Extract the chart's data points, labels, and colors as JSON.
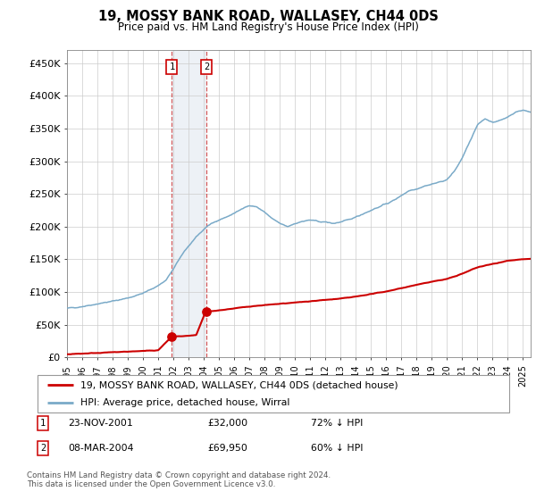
{
  "title": "19, MOSSY BANK ROAD, WALLASEY, CH44 0DS",
  "subtitle": "Price paid vs. HM Land Registry's House Price Index (HPI)",
  "xlim_start": 1995.0,
  "xlim_end": 2025.5,
  "ylim": [
    0,
    470000
  ],
  "yticks": [
    0,
    50000,
    100000,
    150000,
    200000,
    250000,
    300000,
    350000,
    400000,
    450000
  ],
  "ytick_labels": [
    "£0",
    "£50K",
    "£100K",
    "£150K",
    "£200K",
    "£250K",
    "£300K",
    "£350K",
    "£400K",
    "£450K"
  ],
  "property_color": "#cc0000",
  "hpi_color": "#7aaac8",
  "vline_color": "#cc3333",
  "annotation_fill_color": "#ccd9e8",
  "transaction1_date": 2001.9,
  "transaction1_price": 32000,
  "transaction2_date": 2004.18,
  "transaction2_price": 69950,
  "legend_property_label": "19, MOSSY BANK ROAD, WALLASEY, CH44 0DS (detached house)",
  "legend_hpi_label": "HPI: Average price, detached house, Wirral",
  "footnote": "Contains HM Land Registry data © Crown copyright and database right 2024.\nThis data is licensed under the Open Government Licence v3.0.",
  "table_rows": [
    {
      "num": "1",
      "date": "23-NOV-2001",
      "price": "£32,000",
      "hpi": "72% ↓ HPI"
    },
    {
      "num": "2",
      "date": "08-MAR-2004",
      "price": "£69,950",
      "hpi": "60% ↓ HPI"
    }
  ],
  "hpi_keypoints": [
    [
      1995.0,
      75000
    ],
    [
      1996.0,
      78000
    ],
    [
      1997.0,
      82000
    ],
    [
      1998.0,
      86000
    ],
    [
      1999.0,
      91000
    ],
    [
      2000.0,
      98000
    ],
    [
      2001.0,
      110000
    ],
    [
      2001.5,
      118000
    ],
    [
      2002.0,
      135000
    ],
    [
      2002.5,
      155000
    ],
    [
      2003.0,
      170000
    ],
    [
      2003.5,
      185000
    ],
    [
      2004.0,
      195000
    ],
    [
      2004.5,
      205000
    ],
    [
      2005.0,
      210000
    ],
    [
      2005.5,
      215000
    ],
    [
      2006.0,
      220000
    ],
    [
      2006.5,
      228000
    ],
    [
      2007.0,
      232000
    ],
    [
      2007.5,
      230000
    ],
    [
      2008.0,
      222000
    ],
    [
      2008.5,
      212000
    ],
    [
      2009.0,
      205000
    ],
    [
      2009.5,
      200000
    ],
    [
      2010.0,
      205000
    ],
    [
      2010.5,
      208000
    ],
    [
      2011.0,
      210000
    ],
    [
      2011.5,
      208000
    ],
    [
      2012.0,
      207000
    ],
    [
      2012.5,
      205000
    ],
    [
      2013.0,
      207000
    ],
    [
      2013.5,
      210000
    ],
    [
      2014.0,
      215000
    ],
    [
      2014.5,
      220000
    ],
    [
      2015.0,
      225000
    ],
    [
      2015.5,
      230000
    ],
    [
      2016.0,
      235000
    ],
    [
      2016.5,
      240000
    ],
    [
      2017.0,
      248000
    ],
    [
      2017.5,
      255000
    ],
    [
      2018.0,
      258000
    ],
    [
      2018.5,
      262000
    ],
    [
      2019.0,
      265000
    ],
    [
      2019.5,
      268000
    ],
    [
      2020.0,
      272000
    ],
    [
      2020.5,
      285000
    ],
    [
      2021.0,
      305000
    ],
    [
      2021.5,
      330000
    ],
    [
      2022.0,
      355000
    ],
    [
      2022.5,
      365000
    ],
    [
      2023.0,
      360000
    ],
    [
      2023.5,
      362000
    ],
    [
      2024.0,
      368000
    ],
    [
      2024.5,
      375000
    ],
    [
      2025.0,
      378000
    ],
    [
      2025.5,
      375000
    ]
  ],
  "prop_keypoints": [
    [
      1995.0,
      5000
    ],
    [
      1996.0,
      6000
    ],
    [
      1997.0,
      7000
    ],
    [
      1998.0,
      8000
    ],
    [
      1999.0,
      9000
    ],
    [
      2000.0,
      10000
    ],
    [
      2001.0,
      11000
    ],
    [
      2001.85,
      31000
    ],
    [
      2001.9,
      32000
    ],
    [
      2002.5,
      32500
    ],
    [
      2003.0,
      33000
    ],
    [
      2003.5,
      34000
    ],
    [
      2004.1,
      69000
    ],
    [
      2004.18,
      69950
    ],
    [
      2005.0,
      72000
    ],
    [
      2006.0,
      75000
    ],
    [
      2007.0,
      78000
    ],
    [
      2008.0,
      80000
    ],
    [
      2009.0,
      82000
    ],
    [
      2010.0,
      84000
    ],
    [
      2011.0,
      86000
    ],
    [
      2012.0,
      88000
    ],
    [
      2013.0,
      90000
    ],
    [
      2014.0,
      93000
    ],
    [
      2015.0,
      97000
    ],
    [
      2016.0,
      101000
    ],
    [
      2017.0,
      106000
    ],
    [
      2018.0,
      111000
    ],
    [
      2019.0,
      116000
    ],
    [
      2020.0,
      120000
    ],
    [
      2021.0,
      128000
    ],
    [
      2022.0,
      138000
    ],
    [
      2023.0,
      143000
    ],
    [
      2024.0,
      148000
    ],
    [
      2025.0,
      150000
    ],
    [
      2025.5,
      151000
    ]
  ]
}
